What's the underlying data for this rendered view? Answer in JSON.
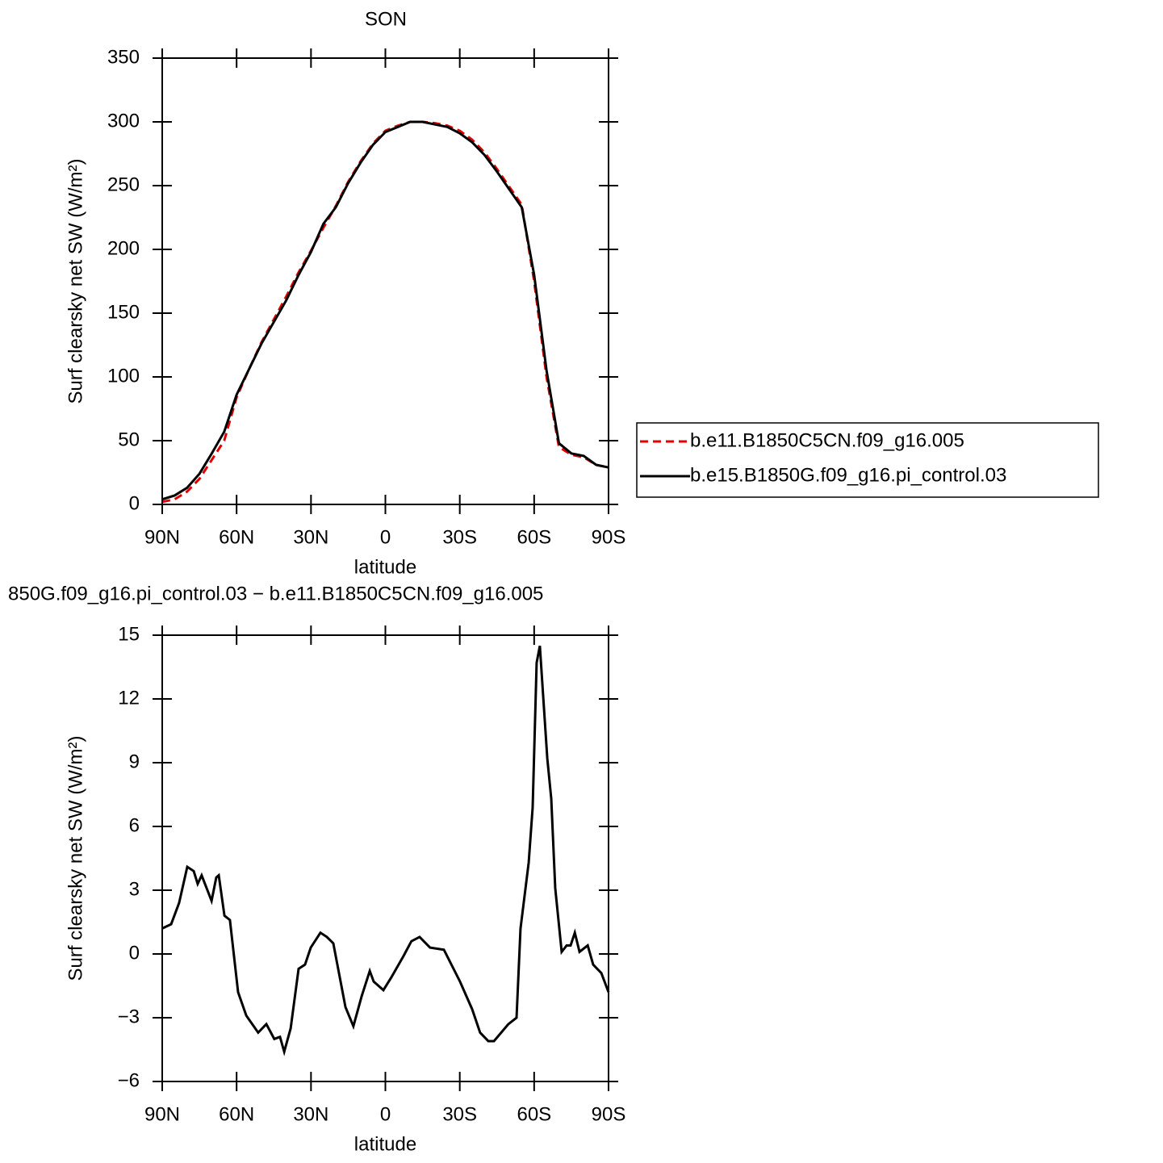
{
  "chart_data": [
    {
      "type": "line",
      "title": "SON",
      "xlabel": "latitude",
      "ylabel": "Surf clearsky net SW (W/m²)",
      "x": [
        90,
        85,
        80,
        75,
        70,
        65,
        60,
        55,
        50,
        45,
        40,
        35,
        30,
        25,
        20,
        15,
        10,
        5,
        0,
        -5,
        -10,
        -15,
        -20,
        -25,
        -30,
        -35,
        -40,
        -45,
        -50,
        -55,
        -60,
        -65,
        -70,
        -75,
        -80,
        -85,
        -90
      ],
      "series": [
        {
          "name": "b.e11.B1850C5CN.f09_g16.005",
          "color": "#e00000",
          "style": "dashed",
          "values": [
            2,
            4,
            10,
            20,
            35,
            50,
            84,
            106,
            127,
            145,
            163,
            182,
            199,
            217,
            234,
            253,
            269,
            283,
            293,
            297,
            300,
            300,
            299,
            297,
            293,
            286,
            276,
            263,
            249,
            235,
            175,
            100,
            45,
            39,
            37,
            31,
            29
          ]
        },
        {
          "name": "b.e15.B1850G.f09_g16.pi_control.03",
          "color": "#000000",
          "style": "solid",
          "values": [
            4,
            7,
            13,
            24,
            40,
            57,
            86,
            106,
            126,
            143,
            160,
            180,
            198,
            220,
            233,
            252,
            268,
            282,
            292,
            296,
            300,
            300,
            298,
            296,
            291,
            284,
            274,
            261,
            247,
            233,
            180,
            105,
            48,
            40,
            38,
            31,
            29
          ]
        }
      ],
      "xlim": [
        90,
        -90
      ],
      "xticks": [
        {
          "value": 90,
          "label": "90N"
        },
        {
          "value": 60,
          "label": "60N"
        },
        {
          "value": 30,
          "label": "30N"
        },
        0,
        {
          "value": -30,
          "label": "30S"
        },
        {
          "value": -60,
          "label": "60S"
        },
        {
          "value": -90,
          "label": "90S"
        }
      ],
      "ylim": [
        0,
        350
      ],
      "yticks": [
        0,
        50,
        100,
        150,
        200,
        250,
        300,
        350
      ],
      "legend": "right"
    },
    {
      "type": "line",
      "title": "850G.f09_g16.pi_control.03 − b.e11.B1850C5CN.f09_g16.005",
      "xlabel": "latitude",
      "ylabel": "Surf clearsky net SW (W/m²)",
      "x": [
        90,
        86.4,
        83.2,
        79.9,
        77.3,
        75.7,
        74.1,
        70.1,
        68.2,
        67.2,
        64.9,
        62.7,
        59.4,
        56.1,
        51.3,
        48.0,
        44.8,
        42.5,
        40.8,
        38.2,
        35.0,
        32.4,
        30.1,
        26.2,
        23.6,
        21.0,
        16.1,
        12.9,
        9.6,
        6.3,
        4.7,
        0.8,
        -2.4,
        -7.3,
        -10.5,
        -13.8,
        -18.0,
        -23.6,
        -30.1,
        -35.0,
        -38.2,
        -41.5,
        -43.8,
        -49.6,
        -52.9,
        -54.5,
        -56.1,
        -57.8,
        -59.4,
        -61.0,
        -62.3,
        -63.6,
        -65.3,
        -66.9,
        -68.5,
        -71.1,
        -73.1,
        -74.7,
        -76.4,
        -78.3,
        -81.6,
        -83.8,
        -87.1,
        -90
      ],
      "values": [
        1.2,
        1.4,
        2.4,
        4.1,
        3.9,
        3.3,
        3.7,
        2.5,
        3.6,
        3.7,
        1.8,
        1.6,
        -1.8,
        -2.9,
        -3.7,
        -3.3,
        -4.0,
        -3.9,
        -4.6,
        -3.5,
        -0.7,
        -0.5,
        0.3,
        1.0,
        0.8,
        0.5,
        -2.5,
        -3.4,
        -2.0,
        -0.8,
        -1.3,
        -1.7,
        -1.1,
        -0.1,
        0.6,
        0.8,
        0.3,
        0.2,
        -1.3,
        -2.6,
        -3.7,
        -4.1,
        -4.1,
        -3.3,
        -3.0,
        1.2,
        2.7,
        4.3,
        6.9,
        13.7,
        14.5,
        12.2,
        9.2,
        7.3,
        3.1,
        0.1,
        0.4,
        0.4,
        1.0,
        0.1,
        0.4,
        -0.5,
        -0.9,
        -1.8
      ],
      "color": "#000000",
      "xlim": [
        90,
        -90
      ],
      "xticks": [
        {
          "value": 90,
          "label": "90N"
        },
        {
          "value": 60,
          "label": "60N"
        },
        {
          "value": 30,
          "label": "30N"
        },
        0,
        {
          "value": -30,
          "label": "30S"
        },
        {
          "value": -60,
          "label": "60S"
        },
        {
          "value": -90,
          "label": "90S"
        }
      ],
      "ylim": [
        -6,
        15
      ],
      "yticks": [
        {
          "value": -6,
          "label": "−6"
        },
        {
          "value": -3,
          "label": "−3"
        },
        0,
        3,
        6,
        9,
        12,
        15
      ]
    }
  ]
}
